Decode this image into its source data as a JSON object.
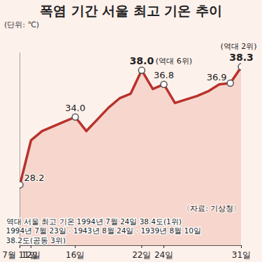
{
  "chart_data": {
    "type": "line",
    "title": "폭염 기간 서울 최고 기온 추이",
    "subtitle": "(단위: ℃)",
    "source": "〈자료: 기상청〉",
    "note": [
      "역대 서울 최고 기온 1994년 7월 24일 38.4도(1위)",
      "1994년 7월 23일 · 1943년 8월 24일 · 1939년 8월 10일",
      "38.2도(공동 3위)"
    ],
    "x": [
      11,
      12,
      13,
      14,
      15,
      16,
      17,
      18,
      19,
      20,
      21,
      22,
      23,
      24,
      25,
      26,
      27,
      28,
      29,
      30,
      31
    ],
    "values": [
      28.2,
      32.0,
      32.8,
      33.2,
      33.6,
      34.0,
      32.8,
      33.8,
      34.8,
      35.6,
      36.0,
      38.0,
      36.4,
      36.8,
      35.2,
      35.5,
      35.8,
      36.2,
      36.8,
      36.9,
      38.3
    ],
    "value_labels": [
      "28.2",
      null,
      null,
      null,
      null,
      "34.0",
      null,
      null,
      null,
      null,
      null,
      "38.0",
      null,
      "36.8",
      null,
      null,
      null,
      null,
      null,
      "36.9",
      "38.3"
    ],
    "annotations": [
      {
        "x": 22,
        "text": "(역대 6위)"
      },
      {
        "x": 31,
        "text": "(역대 2위)"
      }
    ],
    "color": "#b8322c",
    "marker": "circle",
    "data_labels": true,
    "tick_labels": "x",
    "grid": false,
    "xlim": [
      11,
      31
    ],
    "xticks": [
      {
        "value": 11,
        "label": "7월 11일"
      },
      {
        "value": 12,
        "label": "12일"
      },
      {
        "value": 16,
        "label": "16일"
      },
      {
        "value": 22,
        "label": "22일"
      },
      {
        "value": 24,
        "label": "24일"
      },
      {
        "value": 31,
        "label": "31일"
      }
    ],
    "ylim": [
      23,
      39.5
    ],
    "yticks": []
  }
}
